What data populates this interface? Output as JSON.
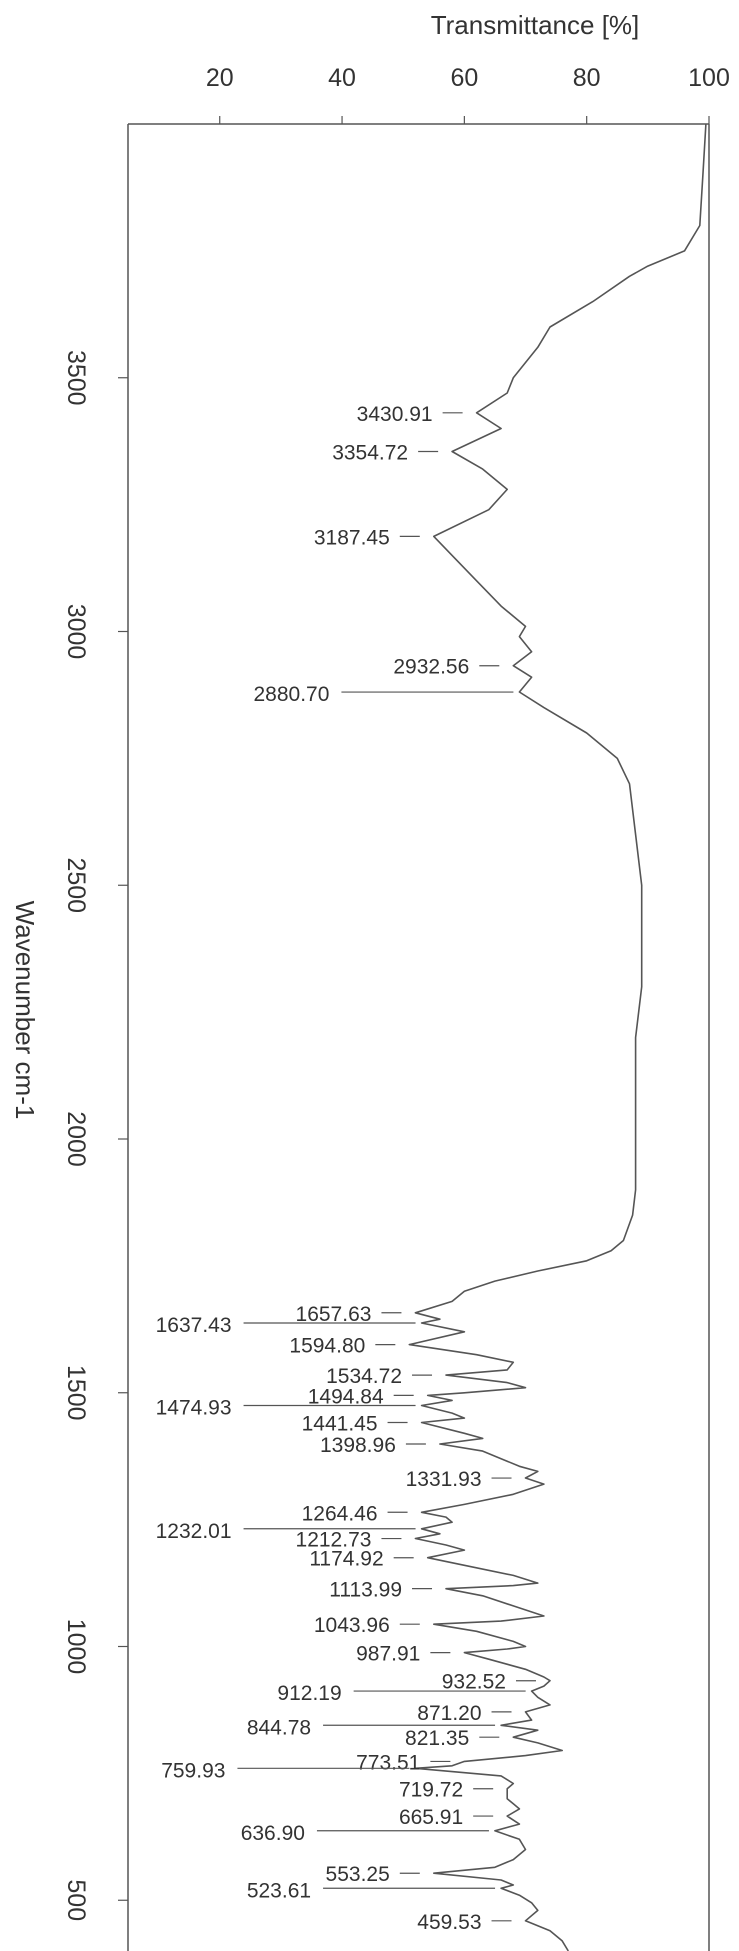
{
  "chart_data": {
    "type": "line",
    "orientation": "rotated",
    "xlabel": "Transmittance [%]",
    "ylabel": "Wavenumber cm-1",
    "x_ticks": [
      "20",
      "40",
      "60",
      "80",
      "100"
    ],
    "y_ticks": [
      "3500",
      "3000",
      "2500",
      "2000",
      "1500",
      "1000",
      "500"
    ],
    "xlim": [
      5,
      100
    ],
    "ylim": [
      4000,
      400
    ],
    "grid": false,
    "colors": {
      "line": "#555555",
      "text": "#333333",
      "frame": "#555555"
    },
    "series": [
      {
        "points": [
          [
            4000,
            99.5
          ],
          [
            3900,
            99
          ],
          [
            3800,
            98.5
          ],
          [
            3750,
            96
          ],
          [
            3720,
            90
          ],
          [
            3700,
            87
          ],
          [
            3650,
            81
          ],
          [
            3600,
            74
          ],
          [
            3560,
            72
          ],
          [
            3500,
            68
          ],
          [
            3470,
            67
          ],
          [
            3430.91,
            62
          ],
          [
            3400,
            66
          ],
          [
            3354.72,
            58
          ],
          [
            3320,
            63
          ],
          [
            3280,
            67
          ],
          [
            3240,
            64
          ],
          [
            3187.45,
            55
          ],
          [
            3150,
            58
          ],
          [
            3100,
            62
          ],
          [
            3050,
            66
          ],
          [
            3010,
            70
          ],
          [
            2990,
            69
          ],
          [
            2960,
            71
          ],
          [
            2932.56,
            68
          ],
          [
            2910,
            71
          ],
          [
            2880.7,
            69
          ],
          [
            2850,
            73
          ],
          [
            2800,
            80
          ],
          [
            2750,
            85
          ],
          [
            2700,
            87
          ],
          [
            2600,
            88
          ],
          [
            2500,
            89
          ],
          [
            2400,
            89
          ],
          [
            2300,
            89
          ],
          [
            2200,
            88
          ],
          [
            2100,
            88
          ],
          [
            2000,
            88
          ],
          [
            1900,
            88
          ],
          [
            1850,
            87.5
          ],
          [
            1800,
            86
          ],
          [
            1780,
            84
          ],
          [
            1760,
            80
          ],
          [
            1740,
            72
          ],
          [
            1720,
            65
          ],
          [
            1700,
            60
          ],
          [
            1680,
            58
          ],
          [
            1657.63,
            52
          ],
          [
            1645,
            56
          ],
          [
            1637.43,
            53
          ],
          [
            1620,
            60
          ],
          [
            1594.8,
            51
          ],
          [
            1575,
            62
          ],
          [
            1560,
            68
          ],
          [
            1545,
            67
          ],
          [
            1534.72,
            57
          ],
          [
            1520,
            67
          ],
          [
            1510,
            70
          ],
          [
            1500,
            60
          ],
          [
            1494.84,
            54
          ],
          [
            1485,
            58
          ],
          [
            1474.93,
            53
          ],
          [
            1460,
            58
          ],
          [
            1450,
            60
          ],
          [
            1441.45,
            53
          ],
          [
            1420,
            60
          ],
          [
            1410,
            63
          ],
          [
            1398.96,
            56
          ],
          [
            1385,
            63
          ],
          [
            1370,
            66
          ],
          [
            1355,
            69
          ],
          [
            1345,
            72
          ],
          [
            1331.93,
            70
          ],
          [
            1320,
            73
          ],
          [
            1300,
            68
          ],
          [
            1280,
            60
          ],
          [
            1264.46,
            53
          ],
          [
            1255,
            57
          ],
          [
            1245,
            58
          ],
          [
            1232.01,
            53
          ],
          [
            1222,
            56
          ],
          [
            1212.73,
            52
          ],
          [
            1200,
            57
          ],
          [
            1190,
            60
          ],
          [
            1174.92,
            54
          ],
          [
            1160,
            60
          ],
          [
            1140,
            68
          ],
          [
            1125,
            72
          ],
          [
            1120,
            68
          ],
          [
            1113.99,
            57
          ],
          [
            1100,
            63
          ],
          [
            1080,
            68
          ],
          [
            1060,
            73
          ],
          [
            1050,
            66
          ],
          [
            1043.96,
            55
          ],
          [
            1030,
            62
          ],
          [
            1010,
            68
          ],
          [
            1000,
            70
          ],
          [
            995,
            67
          ],
          [
            987.91,
            60
          ],
          [
            975,
            64
          ],
          [
            955,
            70
          ],
          [
            940,
            73
          ],
          [
            932.52,
            74
          ],
          [
            922,
            73
          ],
          [
            912.19,
            71
          ],
          [
            900,
            72
          ],
          [
            885,
            74
          ],
          [
            878,
            72
          ],
          [
            871.2,
            70
          ],
          [
            855,
            71
          ],
          [
            844.78,
            66
          ],
          [
            835,
            72
          ],
          [
            821.35,
            68
          ],
          [
            810,
            72
          ],
          [
            795,
            76
          ],
          [
            785,
            70
          ],
          [
            773.51,
            60
          ],
          [
            765,
            58
          ],
          [
            759.93,
            52
          ],
          [
            745,
            66
          ],
          [
            730,
            68
          ],
          [
            719.72,
            67
          ],
          [
            700,
            67
          ],
          [
            690,
            68
          ],
          [
            680,
            69
          ],
          [
            665.91,
            67
          ],
          [
            650,
            69
          ],
          [
            636.9,
            65
          ],
          [
            620,
            69
          ],
          [
            600,
            70
          ],
          [
            580,
            68
          ],
          [
            565,
            65
          ],
          [
            553.25,
            55
          ],
          [
            540,
            66
          ],
          [
            530,
            68
          ],
          [
            523.61,
            66
          ],
          [
            510,
            69
          ],
          [
            495,
            71
          ],
          [
            480,
            72
          ],
          [
            459.53,
            70
          ],
          [
            440,
            74
          ],
          [
            420,
            76
          ],
          [
            400,
            77
          ]
        ]
      }
    ],
    "annotations": [
      {
        "wn": 3430.91,
        "label": "3430.91",
        "side": "left"
      },
      {
        "wn": 3354.72,
        "label": "3354.72",
        "side": "left"
      },
      {
        "wn": 3187.45,
        "label": "3187.45",
        "side": "left"
      },
      {
        "wn": 2932.56,
        "label": "2932.56",
        "side": "left"
      },
      {
        "wn": 2880.7,
        "label": "2880.70",
        "side": "far"
      },
      {
        "wn": 1657.63,
        "label": "1657.63",
        "side": "left"
      },
      {
        "wn": 1637.43,
        "label": "1637.43",
        "side": "far"
      },
      {
        "wn": 1594.8,
        "label": "1594.80",
        "side": "left"
      },
      {
        "wn": 1534.72,
        "label": "1534.72",
        "side": "left"
      },
      {
        "wn": 1494.84,
        "label": "1494.84",
        "side": "left"
      },
      {
        "wn": 1474.93,
        "label": "1474.93",
        "side": "far"
      },
      {
        "wn": 1441.45,
        "label": "1441.45",
        "side": "left"
      },
      {
        "wn": 1398.96,
        "label": "1398.96",
        "side": "left"
      },
      {
        "wn": 1331.93,
        "label": "1331.93",
        "side": "left"
      },
      {
        "wn": 1264.46,
        "label": "1264.46",
        "side": "left"
      },
      {
        "wn": 1232.01,
        "label": "1232.01",
        "side": "far"
      },
      {
        "wn": 1212.73,
        "label": "1212.73",
        "side": "left"
      },
      {
        "wn": 1174.92,
        "label": "1174.92",
        "side": "left"
      },
      {
        "wn": 1113.99,
        "label": "1113.99",
        "side": "left"
      },
      {
        "wn": 1043.96,
        "label": "1043.96",
        "side": "left"
      },
      {
        "wn": 987.91,
        "label": "987.91",
        "side": "left"
      },
      {
        "wn": 932.52,
        "label": "932.52",
        "side": "left"
      },
      {
        "wn": 912.19,
        "label": "912.19",
        "side": "far"
      },
      {
        "wn": 871.2,
        "label": "871.20",
        "side": "left"
      },
      {
        "wn": 844.78,
        "label": "844.78",
        "side": "far"
      },
      {
        "wn": 821.35,
        "label": "821.35",
        "side": "left"
      },
      {
        "wn": 773.51,
        "label": "773.51",
        "side": "left"
      },
      {
        "wn": 759.93,
        "label": "759.93",
        "side": "far"
      },
      {
        "wn": 719.72,
        "label": "719.72",
        "side": "left"
      },
      {
        "wn": 665.91,
        "label": "665.91",
        "side": "left"
      },
      {
        "wn": 636.9,
        "label": "636.90",
        "side": "far"
      },
      {
        "wn": 553.25,
        "label": "553.25",
        "side": "left"
      },
      {
        "wn": 523.61,
        "label": "523.61",
        "side": "far"
      },
      {
        "wn": 459.53,
        "label": "459.53",
        "side": "left"
      }
    ]
  }
}
